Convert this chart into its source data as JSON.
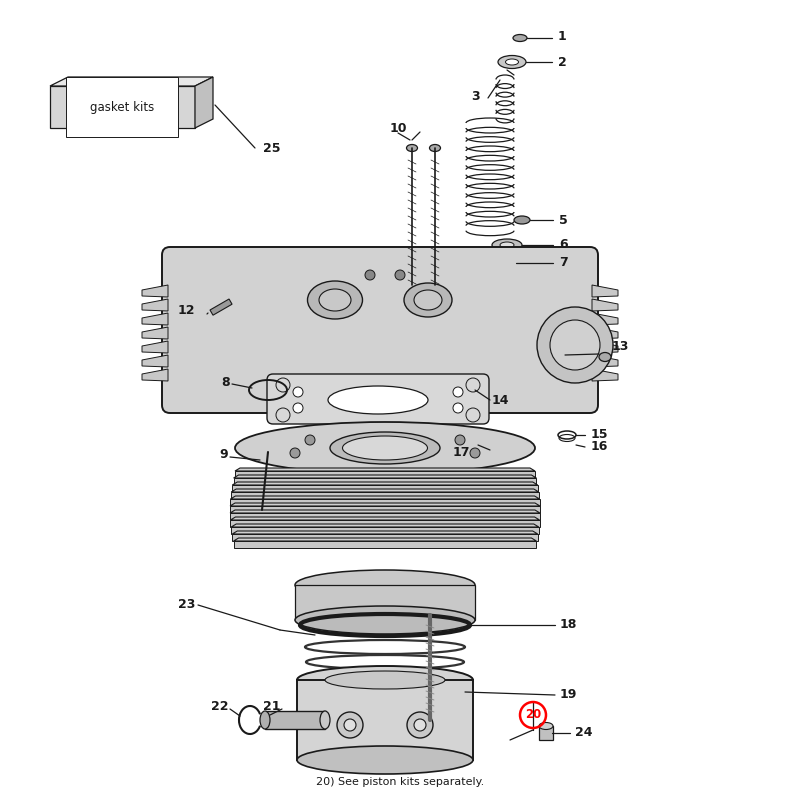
{
  "background_color": "#ffffff",
  "line_color": "#1a1a1a",
  "note_text": "20) See piston kits separately.",
  "gasket_label": "gasket kits",
  "fig_w": 8.0,
  "fig_h": 8.0,
  "dpi": 100
}
